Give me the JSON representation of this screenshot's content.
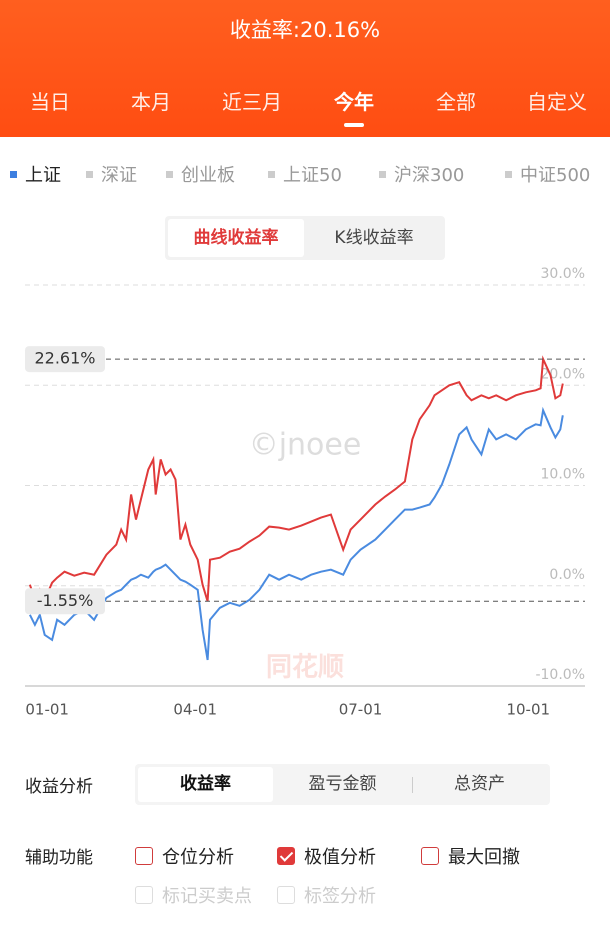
{
  "header": {
    "title": "收益率:20.16%"
  },
  "tabs": {
    "items": [
      "当日",
      "本月",
      "近三月",
      "今年",
      "全部",
      "自定义"
    ],
    "active": 3
  },
  "benchmarks": {
    "items": [
      "上证",
      "深证",
      "创业板",
      "上证50",
      "沪深300",
      "中证500"
    ],
    "active": 0
  },
  "chart_toggle": {
    "items": [
      "曲线收益率",
      "K线收益率"
    ],
    "active": 0
  },
  "chart_data": {
    "type": "line",
    "x": [
      0,
      2,
      4,
      6,
      9,
      11,
      14,
      18,
      22,
      26,
      31,
      35,
      37,
      39,
      41,
      43,
      45,
      48,
      50,
      51,
      53,
      55,
      57,
      59,
      61,
      63,
      65,
      68,
      70,
      72,
      73,
      77,
      81,
      85,
      89,
      93,
      97,
      101,
      105,
      110,
      114,
      118,
      122,
      127,
      130,
      134,
      140,
      144,
      148,
      152,
      155,
      158,
      162,
      164,
      167,
      170,
      174,
      177,
      179,
      183,
      186,
      189,
      193,
      197,
      201,
      205,
      207,
      208,
      211,
      213,
      215,
      216
    ],
    "series": [
      {
        "color": "#e03a3a",
        "values": [
          0.1,
          -1.4,
          -0.4,
          -1.4,
          0.3,
          0.8,
          1.4,
          1.0,
          1.3,
          1.1,
          3.1,
          4.1,
          5.6,
          4.6,
          9.1,
          6.6,
          8.6,
          11.6,
          12.6,
          9.1,
          12.6,
          11.1,
          11.6,
          10.6,
          4.6,
          6.1,
          4.1,
          2.6,
          0.1,
          -1.55,
          2.6,
          2.8,
          3.4,
          3.7,
          4.4,
          5.0,
          5.9,
          5.8,
          5.6,
          6.0,
          6.4,
          6.8,
          7.1,
          3.6,
          5.6,
          6.6,
          8.1,
          8.9,
          9.6,
          10.4,
          14.6,
          16.6,
          18.0,
          19.0,
          19.5,
          20.0,
          20.3,
          19.0,
          18.5,
          19.0,
          18.7,
          19.0,
          18.5,
          19.0,
          19.3,
          19.5,
          19.7,
          22.61,
          21.0,
          18.7,
          19.0,
          20.16
        ]
      },
      {
        "color": "#4a8be0",
        "values": [
          -2.9,
          -3.9,
          -2.9,
          -4.9,
          -5.4,
          -3.4,
          -3.9,
          -2.9,
          -2.4,
          -3.4,
          -1.2,
          -0.6,
          -0.4,
          0.1,
          0.6,
          0.8,
          1.1,
          0.8,
          1.4,
          1.6,
          1.8,
          2.1,
          1.6,
          1.1,
          0.6,
          0.4,
          0.1,
          -0.4,
          -4.4,
          -7.4,
          -3.4,
          -2.2,
          -1.7,
          -2.0,
          -1.4,
          -0.4,
          1.1,
          0.6,
          1.1,
          0.6,
          1.1,
          1.4,
          1.6,
          1.1,
          2.6,
          3.6,
          4.6,
          5.6,
          6.6,
          7.6,
          7.6,
          7.8,
          8.1,
          8.8,
          10.1,
          12.1,
          15.1,
          15.8,
          14.6,
          13.1,
          15.6,
          14.6,
          15.1,
          14.6,
          15.6,
          16.1,
          16.0,
          17.5,
          15.8,
          14.8,
          15.6,
          17.0
        ]
      }
    ],
    "xlim": [
      -2,
      225
    ],
    "xticks": [
      {
        "value": 7,
        "label": "01-01"
      },
      {
        "value": 67,
        "label": "04-01"
      },
      {
        "value": 134,
        "label": "07-01"
      },
      {
        "value": 202,
        "label": "10-01"
      }
    ],
    "ylim": [
      -10,
      30
    ],
    "yticks": [
      {
        "value": -10,
        "label": "-10.0%"
      },
      {
        "value": 0,
        "label": "0.0%"
      },
      {
        "value": 10,
        "label": "10.0%"
      },
      {
        "value": 20,
        "label": "20.0%"
      },
      {
        "value": 30,
        "label": "30.0%"
      }
    ],
    "grid": true,
    "max": {
      "value": 22.61,
      "label": "22.61%"
    },
    "min": {
      "value": -1.55,
      "label": "-1.55%"
    },
    "watermarks": [
      "©jnoee",
      "同花顺"
    ]
  },
  "analysis": {
    "label": "收益分析",
    "options": [
      "收益率",
      "盈亏金额",
      "总资产"
    ],
    "active": 0
  },
  "aux": {
    "label": "辅助功能",
    "options": [
      {
        "label": "仓位分析",
        "checked": false,
        "enabled": true
      },
      {
        "label": "极值分析",
        "checked": true,
        "enabled": true
      },
      {
        "label": "最大回撤",
        "checked": false,
        "enabled": true
      },
      {
        "label": "标记买卖点",
        "checked": false,
        "enabled": false
      },
      {
        "label": "标签分析",
        "checked": false,
        "enabled": false
      }
    ]
  }
}
